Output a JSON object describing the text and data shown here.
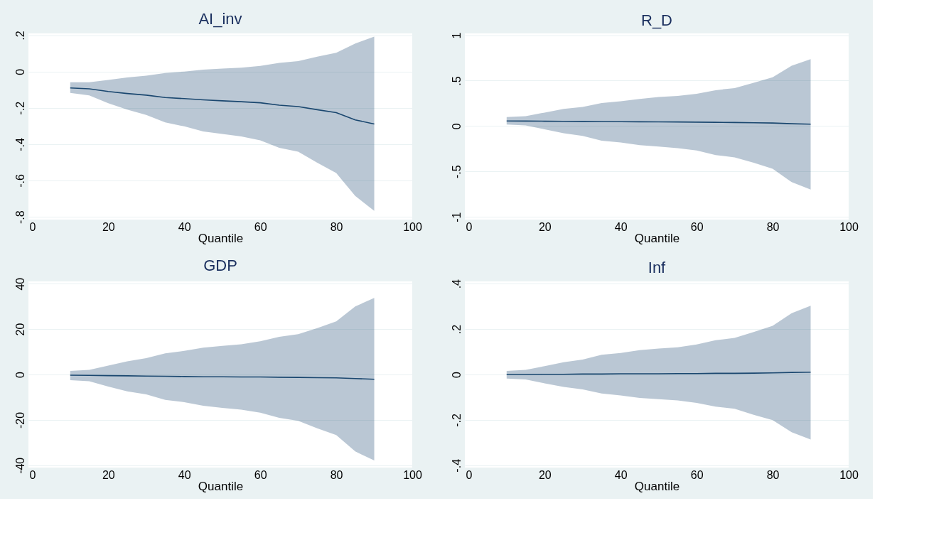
{
  "chart_data": [
    {
      "type": "line",
      "title": "AI_inv",
      "xlabel": "Quantile",
      "x": [
        10,
        15,
        20,
        25,
        30,
        35,
        40,
        45,
        50,
        55,
        60,
        65,
        70,
        75,
        80,
        85,
        90
      ],
      "series": [
        {
          "color": "#1a476f",
          "values": [
            -0.09,
            -0.095,
            -0.11,
            -0.121,
            -0.13,
            -0.143,
            -0.149,
            -0.156,
            -0.161,
            -0.166,
            -0.172,
            -0.185,
            -0.193,
            -0.21,
            -0.226,
            -0.266,
            -0.289
          ],
          "upper": [
            -0.059,
            -0.059,
            -0.046,
            -0.033,
            -0.023,
            -0.008,
            0.0,
            0.01,
            0.016,
            0.021,
            0.031,
            0.048,
            0.057,
            0.082,
            0.103,
            0.154,
            0.192
          ],
          "lower": [
            -0.118,
            -0.131,
            -0.174,
            -0.21,
            -0.239,
            -0.28,
            -0.302,
            -0.33,
            -0.344,
            -0.357,
            -0.379,
            -0.42,
            -0.441,
            -0.502,
            -0.559,
            -0.685,
            -0.767
          ]
        }
      ],
      "xlim": [
        -1,
        100
      ],
      "xticks": [
        0,
        20,
        40,
        60,
        80,
        100
      ],
      "ylim": [
        -0.815,
        0.21
      ],
      "yticks": [
        {
          "value": -0.8,
          "label": "-.8"
        },
        {
          "value": -0.6,
          "label": "-.6"
        },
        {
          "value": -0.4,
          "label": "-.4"
        },
        {
          "value": -0.2,
          "label": "-.2"
        },
        {
          "value": 0,
          "label": "0"
        },
        {
          "value": 0.2,
          "label": ".2"
        }
      ],
      "grid": "y"
    },
    {
      "type": "line",
      "title": "R_D",
      "xlabel": "Quantile",
      "x": [
        10,
        15,
        20,
        25,
        30,
        35,
        40,
        45,
        50,
        55,
        60,
        65,
        70,
        75,
        80,
        85,
        90
      ],
      "series": [
        {
          "color": "#1a476f",
          "values": [
            0.056,
            0.055,
            0.053,
            0.052,
            0.051,
            0.05,
            0.048,
            0.047,
            0.046,
            0.045,
            0.043,
            0.041,
            0.039,
            0.036,
            0.033,
            0.025,
            0.02
          ],
          "upper": [
            0.099,
            0.109,
            0.148,
            0.188,
            0.211,
            0.253,
            0.273,
            0.299,
            0.319,
            0.332,
            0.355,
            0.395,
            0.418,
            0.477,
            0.536,
            0.664,
            0.737
          ],
          "lower": [
            0.016,
            0.007,
            -0.036,
            -0.079,
            -0.109,
            -0.161,
            -0.181,
            -0.211,
            -0.227,
            -0.243,
            -0.27,
            -0.319,
            -0.345,
            -0.405,
            -0.47,
            -0.618,
            -0.7
          ]
        }
      ],
      "xlim": [
        -1,
        100
      ],
      "xticks": [
        0,
        20,
        40,
        60,
        80,
        100
      ],
      "ylim": [
        -1.03,
        1.02
      ],
      "yticks": [
        {
          "value": -1,
          "label": "-1"
        },
        {
          "value": -0.5,
          "label": "-.5"
        },
        {
          "value": 0,
          "label": "0"
        },
        {
          "value": 0.5,
          "label": ".5"
        },
        {
          "value": 1,
          "label": "1"
        }
      ],
      "grid": "y"
    },
    {
      "type": "line",
      "title": "GDP",
      "xlabel": "Quantile",
      "x": [
        10,
        15,
        20,
        25,
        30,
        35,
        40,
        45,
        50,
        55,
        60,
        65,
        70,
        75,
        80,
        85,
        90
      ],
      "series": [
        {
          "color": "#1a476f",
          "values": [
            -0.3,
            -0.4,
            -0.5,
            -0.6,
            -0.7,
            -0.8,
            -0.9,
            -1.0,
            -1.0,
            -1.1,
            -1.1,
            -1.2,
            -1.3,
            -1.4,
            -1.5,
            -1.8,
            -2.1
          ],
          "upper": [
            1.6,
            2.0,
            3.9,
            5.8,
            7.2,
            9.3,
            10.4,
            11.8,
            12.6,
            13.3,
            14.6,
            16.6,
            17.8,
            20.4,
            23.4,
            30,
            33.7
          ],
          "lower": [
            -2.5,
            -3.0,
            -5.3,
            -7.4,
            -8.8,
            -11.2,
            -12.2,
            -13.8,
            -14.7,
            -15.5,
            -16.8,
            -19.1,
            -20.4,
            -23.7,
            -26.7,
            -33.9,
            -37.9
          ]
        }
      ],
      "xlim": [
        -1,
        100
      ],
      "xticks": [
        0,
        20,
        40,
        60,
        80,
        100
      ],
      "ylim": [
        -41,
        41
      ],
      "yticks": [
        -40,
        -20,
        0,
        20,
        40
      ],
      "grid": "y"
    },
    {
      "type": "line",
      "title": "Inf",
      "xlabel": "Quantile",
      "x": [
        10,
        15,
        20,
        25,
        30,
        35,
        40,
        45,
        50,
        55,
        60,
        65,
        70,
        75,
        80,
        85,
        90
      ],
      "series": [
        {
          "color": "#1a476f",
          "values": [
            0,
            0,
            0.001,
            0.001,
            0.002,
            0.002,
            0.003,
            0.003,
            0.003,
            0.004,
            0.004,
            0.005,
            0.005,
            0.006,
            0.007,
            0.009,
            0.01
          ],
          "upper": [
            0.016,
            0.02,
            0.037,
            0.054,
            0.066,
            0.087,
            0.095,
            0.107,
            0.114,
            0.12,
            0.132,
            0.151,
            0.161,
            0.187,
            0.214,
            0.27,
            0.303
          ],
          "lower": [
            -0.018,
            -0.022,
            -0.039,
            -0.055,
            -0.066,
            -0.084,
            -0.092,
            -0.103,
            -0.109,
            -0.114,
            -0.125,
            -0.142,
            -0.151,
            -0.178,
            -0.201,
            -0.254,
            -0.286
          ]
        }
      ],
      "xlim": [
        -1,
        100
      ],
      "xticks": [
        0,
        20,
        40,
        60,
        80,
        100
      ],
      "ylim": [
        -0.41,
        0.41
      ],
      "yticks": [
        {
          "value": -0.4,
          "label": "-.4"
        },
        {
          "value": -0.2,
          "label": "-.2"
        },
        {
          "value": 0,
          "label": "0"
        },
        {
          "value": 0.2,
          "label": ".2"
        },
        {
          "value": 0.4,
          "label": ".4"
        }
      ],
      "grid": "y"
    }
  ]
}
